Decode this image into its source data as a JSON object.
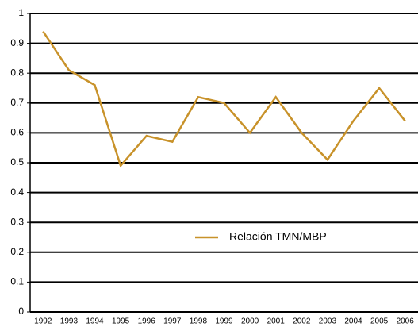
{
  "chart_data": {
    "type": "line",
    "categories": [
      "1992",
      "1993",
      "1994",
      "1995",
      "1996",
      "1997",
      "1998",
      "1999",
      "2000",
      "2001",
      "2002",
      "2003",
      "2004",
      "2005",
      "2006"
    ],
    "series": [
      {
        "name": "Relación TMN/MBP",
        "color": "#c8922a",
        "values": [
          0.94,
          0.81,
          0.76,
          0.49,
          0.59,
          0.57,
          0.72,
          0.7,
          0.6,
          0.72,
          0.6,
          0.51,
          0.64,
          0.75,
          0.64
        ]
      }
    ],
    "ylim": [
      0,
      1
    ],
    "yticks": [
      0,
      0.1,
      0.2,
      0.3,
      0.4,
      0.5,
      0.6,
      0.7,
      0.8,
      0.9,
      1
    ],
    "grid": true
  }
}
